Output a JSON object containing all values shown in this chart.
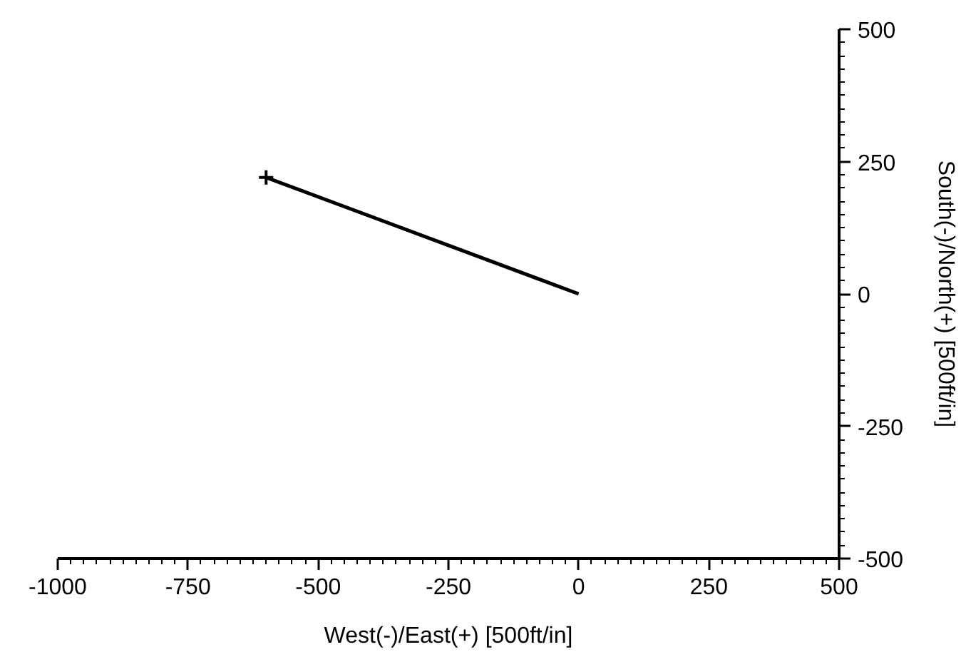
{
  "chart_data": {
    "type": "line",
    "xlabel": "West(-)/East(+) [500ft/in]",
    "ylabel": "South(-)/North(+) [500ft/in]",
    "x": [
      0,
      -600
    ],
    "series": [
      {
        "color": "#000000",
        "values": [
          0,
          220
        ]
      },
      {
        "type": "scatter",
        "marker": "cross",
        "color": "#000000",
        "x": [
          -600
        ],
        "values": [
          220
        ]
      }
    ],
    "xlim": [
      -1000,
      500
    ],
    "ylim": [
      -500,
      500
    ],
    "xticks": [
      -1000,
      -750,
      -500,
      -250,
      0,
      250,
      500
    ],
    "yticks": [
      -500,
      -250,
      0,
      250,
      500
    ],
    "grid": false
  }
}
